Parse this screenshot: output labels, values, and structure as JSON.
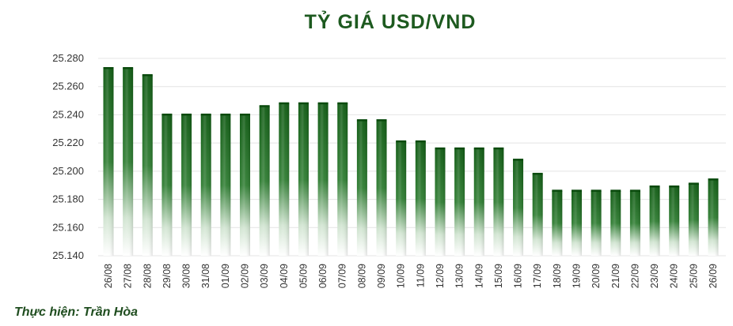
{
  "title": "TỶ GIÁ USD/VND",
  "credit": "Thực hiện: Trần Hòa",
  "colors": {
    "title": "#1d5a1f",
    "bar_top": "#0f5a12",
    "bar_fade": "#ffffff",
    "grid": "#e4e4e4",
    "text": "#333333"
  },
  "chart_data": {
    "type": "bar",
    "title": "TỶ GIÁ USD/VND",
    "xlabel": "",
    "ylabel": "",
    "categories": [
      "26/08",
      "27/08",
      "28/08",
      "29/08",
      "30/08",
      "31/08",
      "01/09",
      "02/09",
      "03/09",
      "04/09",
      "05/09",
      "06/09",
      "07/09",
      "08/09",
      "09/09",
      "10/09",
      "11/09",
      "12/09",
      "13/09",
      "14/09",
      "15/09",
      "16/09",
      "17/09",
      "18/09",
      "19/09",
      "20/09",
      "21/09",
      "22/09",
      "23/09",
      "24/09",
      "25/09",
      "26/09"
    ],
    "values": [
      25273,
      25273,
      25268,
      25240,
      25240,
      25240,
      25240,
      25240,
      25246,
      25248,
      25248,
      25248,
      25248,
      25236,
      25236,
      25221,
      25221,
      25216,
      25216,
      25216,
      25216,
      25208,
      25198,
      25186,
      25186,
      25186,
      25186,
      25186,
      25189,
      25189,
      25191,
      25194
    ],
    "yticks": [
      "25.140",
      "25.160",
      "25.180",
      "25.200",
      "25.220",
      "25.240",
      "25.260",
      "25.280"
    ],
    "ylim": [
      25140,
      25285
    ],
    "grid": true,
    "legend": "none"
  }
}
